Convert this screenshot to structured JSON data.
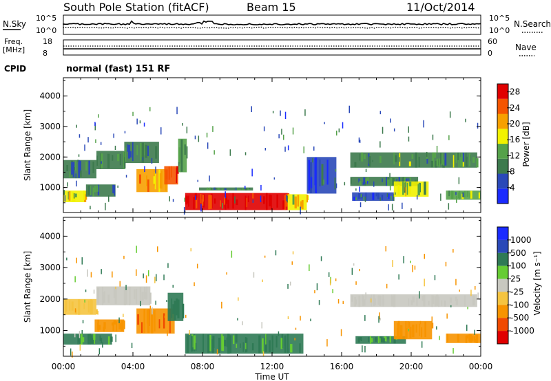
{
  "header": {
    "station": "South Pole Station (fitACF)",
    "beam": "Beam 15",
    "date": "11/Oct/2014"
  },
  "noise_panel": {
    "left_label": "N.Sky",
    "right_label": "N.Search",
    "tick_top": "10^5",
    "tick_bottom": "10^0"
  },
  "freq_panel": {
    "left_label_1": "Freq.",
    "left_label_2": "[MHz]",
    "left_tick_top": "18",
    "left_tick_bottom": "8",
    "right_label": "Nave",
    "right_tick_top": "60",
    "right_tick_bottom": "0"
  },
  "cpid": {
    "label": "CPID",
    "program": "normal (fast) 151 RF"
  },
  "colors": {
    "power_scale": [
      "#1a2bff",
      "#2a49b8",
      "#3d7a4d",
      "#55a24a",
      "#f2f200",
      "#f7a000",
      "#f55500",
      "#e00000"
    ],
    "velocity_scale": [
      "#e00000",
      "#f04a00",
      "#f79400",
      "#f5c440",
      "#c8c8c0",
      "#66cc33",
      "#2f7a55",
      "#2a49b8",
      "#1a2bff"
    ]
  },
  "chart_data": [
    {
      "type": "heatmap",
      "name": "Power",
      "ylabel": "Slant Range [km]",
      "xlabel": "Time UT",
      "x_ticks": [
        "00:00",
        "04:00",
        "08:00",
        "12:00",
        "16:00",
        "20:00",
        "00:00"
      ],
      "y_ticks": [
        "1000",
        "2000",
        "3000",
        "4000"
      ],
      "ylim": [
        180,
        4600
      ],
      "xlim_hours": [
        0,
        24
      ],
      "colorbar_label": "Power [dB]",
      "colorbar_ticks": [
        "4",
        "8",
        "12",
        "16",
        "20",
        "24",
        "28"
      ],
      "colorbar_range": [
        0,
        30
      ],
      "echo_regions": [
        {
          "t0": 0.0,
          "t1": 1.9,
          "r0": 1300,
          "r1": 1900,
          "value": 8
        },
        {
          "t0": 1.9,
          "t1": 3.5,
          "r0": 1600,
          "r1": 2200,
          "value": 10
        },
        {
          "t0": 3.5,
          "t1": 5.5,
          "r0": 1800,
          "r1": 2500,
          "value": 9
        },
        {
          "t0": 0.0,
          "t1": 1.3,
          "r0": 520,
          "r1": 900,
          "value": 18
        },
        {
          "t0": 1.3,
          "t1": 3.0,
          "r0": 700,
          "r1": 1100,
          "value": 9
        },
        {
          "t0": 4.2,
          "t1": 6.0,
          "r0": 850,
          "r1": 1600,
          "value": 20
        },
        {
          "t0": 5.8,
          "t1": 6.6,
          "r0": 1100,
          "r1": 1700,
          "value": 23
        },
        {
          "t0": 6.6,
          "t1": 7.1,
          "r0": 1500,
          "r1": 2600,
          "value": 14
        },
        {
          "t0": 7.0,
          "t1": 12.9,
          "r0": 260,
          "r1": 820,
          "value": 27
        },
        {
          "t0": 12.9,
          "t1": 14.0,
          "r0": 260,
          "r1": 780,
          "value": 17
        },
        {
          "t0": 7.8,
          "t1": 10.9,
          "r0": 900,
          "r1": 1000,
          "value": 10
        },
        {
          "t0": 14.0,
          "t1": 15.7,
          "r0": 800,
          "r1": 2000,
          "value": 6
        },
        {
          "t0": 16.5,
          "t1": 23.8,
          "r0": 1650,
          "r1": 2150,
          "value": 11
        },
        {
          "t0": 16.5,
          "t1": 20.4,
          "r0": 1050,
          "r1": 1350,
          "value": 10
        },
        {
          "t0": 16.6,
          "t1": 19.0,
          "r0": 560,
          "r1": 840,
          "value": 7
        },
        {
          "t0": 19.0,
          "t1": 21.0,
          "r0": 700,
          "r1": 1200,
          "value": 15
        },
        {
          "t0": 22.0,
          "t1": 24.0,
          "r0": 600,
          "r1": 900,
          "value": 13
        }
      ]
    },
    {
      "type": "heatmap",
      "name": "Velocity",
      "ylabel": "Slant Range [km]",
      "xlabel": "Time UT",
      "x_ticks": [
        "00:00",
        "04:00",
        "08:00",
        "12:00",
        "16:00",
        "20:00",
        "00:00"
      ],
      "y_ticks": [
        "1000",
        "2000",
        "3000",
        "4000"
      ],
      "ylim": [
        180,
        4600
      ],
      "xlim_hours": [
        0,
        24
      ],
      "colorbar_label": "Velocity [m s⁻¹]",
      "colorbar_ticks": [
        "1000",
        "500",
        "100",
        "25",
        "-25",
        "-100",
        "-500",
        "-1000"
      ],
      "echo_regions": [
        {
          "t0": 0.0,
          "t1": 1.9,
          "r0": 1500,
          "r1": 2000,
          "value": -50
        },
        {
          "t0": 1.9,
          "t1": 5.0,
          "r0": 1800,
          "r1": 2400,
          "value": 0
        },
        {
          "t0": 0.0,
          "t1": 2.8,
          "r0": 550,
          "r1": 900,
          "value": 150
        },
        {
          "t0": 1.8,
          "t1": 3.5,
          "r0": 950,
          "r1": 1350,
          "value": -300
        },
        {
          "t0": 4.2,
          "t1": 6.4,
          "r0": 900,
          "r1": 1700,
          "value": -450
        },
        {
          "t0": 6.0,
          "t1": 6.9,
          "r0": 1300,
          "r1": 2200,
          "value": 200
        },
        {
          "t0": 7.0,
          "t1": 13.8,
          "r0": 260,
          "r1": 900,
          "value": 150
        },
        {
          "t0": 16.5,
          "t1": 23.8,
          "r0": 1750,
          "r1": 2150,
          "value": 5
        },
        {
          "t0": 16.8,
          "t1": 19.7,
          "r0": 580,
          "r1": 820,
          "value": 120
        },
        {
          "t0": 19.0,
          "t1": 21.2,
          "r0": 720,
          "r1": 1300,
          "value": -300
        },
        {
          "t0": 22.0,
          "t1": 24.0,
          "r0": 600,
          "r1": 900,
          "value": -300
        }
      ]
    }
  ]
}
